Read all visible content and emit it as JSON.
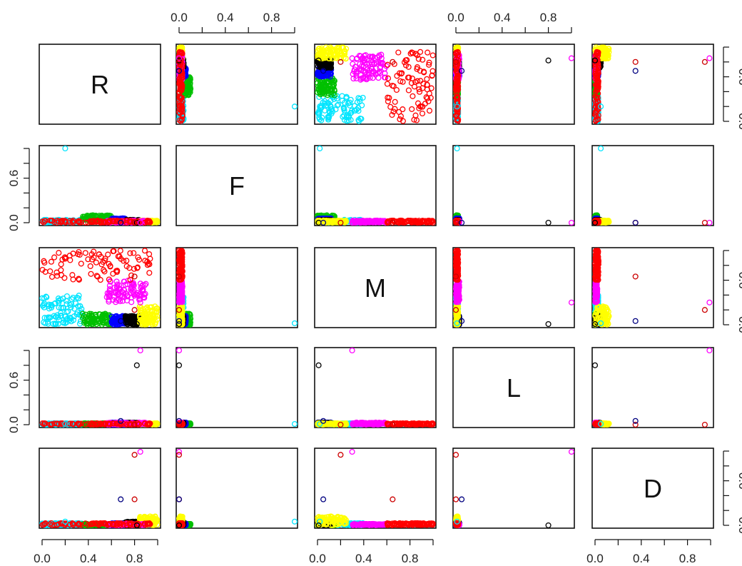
{
  "chart_data": {
    "type": "scatter",
    "variables": [
      "R",
      "F",
      "M",
      "L",
      "D"
    ],
    "axis_range": [
      0,
      1
    ],
    "tick_values": [
      0.0,
      0.2,
      0.4,
      0.6,
      0.8,
      1.0
    ],
    "tick_labels": {
      "0.0": "0.0",
      "0.4": "0.4",
      "0.8": "0.8",
      "0.6": "0.6"
    },
    "left_axis_tick_values": [
      0.0,
      0.6
    ],
    "right_axis_tick_values": [
      0.0,
      0.6
    ],
    "grid": false,
    "legend": "none",
    "marker": "open-circle",
    "clusters": [
      {
        "color": "#00e5ff",
        "R": [
          0.0,
          0.35
        ],
        "F": [
          0.0,
          0.04
        ],
        "M": [
          0.0,
          0.4
        ],
        "L": [
          0.0,
          0.02
        ],
        "D": [
          0.0,
          0.03
        ]
      },
      {
        "color": "#00c000",
        "R": [
          0.35,
          0.6
        ],
        "F": [
          0.02,
          0.1
        ],
        "M": [
          0.0,
          0.15
        ],
        "L": [
          0.0,
          0.02
        ],
        "D": [
          0.0,
          0.02
        ]
      },
      {
        "color": "#0000ff",
        "R": [
          0.6,
          0.72
        ],
        "F": [
          0.02,
          0.06
        ],
        "M": [
          0.0,
          0.12
        ],
        "L": [
          0.0,
          0.03
        ],
        "D": [
          0.0,
          0.03
        ]
      },
      {
        "color": "#000000",
        "R": [
          0.72,
          0.84
        ],
        "F": [
          0.0,
          0.04
        ],
        "M": [
          0.0,
          0.12
        ],
        "L": [
          0.0,
          0.03
        ],
        "D": [
          0.0,
          0.05
        ]
      },
      {
        "color": "#ffff00",
        "R": [
          0.84,
          1.0
        ],
        "F": [
          0.0,
          0.03
        ],
        "M": [
          0.0,
          0.25
        ],
        "L": [
          0.0,
          0.02
        ],
        "D": [
          0.0,
          0.12
        ]
      },
      {
        "color": "#ff00ff",
        "R": [
          0.55,
          0.9
        ],
        "F": [
          0.0,
          0.03
        ],
        "M": [
          0.3,
          0.6
        ],
        "L": [
          0.0,
          0.03
        ],
        "D": [
          0.0,
          0.02
        ]
      },
      {
        "color": "#ff0000",
        "R": [
          0.0,
          0.95
        ],
        "F": [
          0.0,
          0.03
        ],
        "M": [
          0.6,
          1.0
        ],
        "L": [
          0.0,
          0.02
        ],
        "D": [
          0.0,
          0.03
        ]
      }
    ],
    "outliers": [
      {
        "color": "#00e5ff",
        "R": 0.2,
        "F": 1.0,
        "M": 0.02,
        "L": 0.01,
        "D": 0.05
      },
      {
        "color": "#000000",
        "R": 0.82,
        "F": 0.0,
        "M": 0.01,
        "L": 0.8,
        "D": 0.0
      },
      {
        "color": "#ff00ff",
        "R": 0.85,
        "F": 0.0,
        "M": 0.3,
        "L": 1.0,
        "D": 0.99
      },
      {
        "color": "#cc0000",
        "R": 0.8,
        "F": 0.0,
        "M": 0.2,
        "L": 0.0,
        "D": 0.95
      },
      {
        "color": "#cc0000",
        "R": 0.8,
        "F": 0.0,
        "M": 0.65,
        "L": 0.0,
        "D": 0.35
      },
      {
        "color": "#000080",
        "R": 0.68,
        "F": 0.0,
        "M": 0.05,
        "L": 0.05,
        "D": 0.35
      }
    ]
  }
}
